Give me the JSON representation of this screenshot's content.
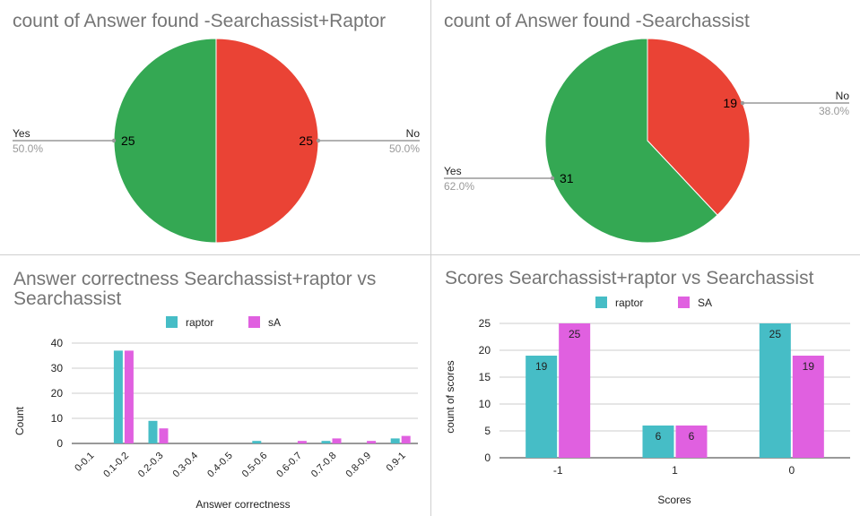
{
  "chart_data": [
    {
      "type": "pie",
      "title": "count of Answer found -Searchassist+Raptor",
      "slices": [
        {
          "label": "No",
          "value": 25,
          "percent": "50.0%",
          "color": "#ea4335"
        },
        {
          "label": "Yes",
          "value": 25,
          "percent": "50.0%",
          "color": "#34a853"
        }
      ]
    },
    {
      "type": "pie",
      "title": "count of Answer found -Searchassist",
      "slices": [
        {
          "label": "No",
          "value": 19,
          "percent": "38.0%",
          "color": "#ea4335"
        },
        {
          "label": "Yes",
          "value": 31,
          "percent": "62.0%",
          "color": "#34a853"
        }
      ]
    },
    {
      "type": "bar",
      "title": "Answer correctness Searchassist+raptor vs Searchassist",
      "xlabel": "Answer correctness",
      "ylabel": "Count",
      "ylim": [
        0,
        40
      ],
      "yticks": [
        0,
        10,
        20,
        30,
        40
      ],
      "legend": "top",
      "categories": [
        "0-0.1",
        "0.1-0.2",
        "0.2-0.3",
        "0.3-0.4",
        "0.4-0.5",
        "0.5-0.6",
        "0.6-0.7",
        "0.7-0.8",
        "0.8-0.9",
        "0.9-1"
      ],
      "series": [
        {
          "name": "raptor",
          "color": "#46bdc6",
          "values": [
            0,
            37,
            9,
            0,
            0,
            1,
            0,
            1,
            0,
            2
          ]
        },
        {
          "name": "sA",
          "color": "#e060e0",
          "values": [
            0,
            37,
            6,
            0,
            0,
            0,
            1,
            2,
            1,
            3
          ]
        }
      ]
    },
    {
      "type": "bar",
      "title": "Scores Searchassist+raptor vs Searchassist",
      "xlabel": "Scores",
      "ylabel": "count of scores",
      "ylim": [
        0,
        25
      ],
      "yticks": [
        0,
        5,
        10,
        15,
        20,
        25
      ],
      "legend": "top",
      "categories": [
        "-1",
        "1",
        "0"
      ],
      "series": [
        {
          "name": "raptor",
          "color": "#46bdc6",
          "values": [
            19,
            6,
            25
          ]
        },
        {
          "name": "SA",
          "color": "#e060e0",
          "values": [
            25,
            6,
            19
          ]
        }
      ]
    }
  ]
}
